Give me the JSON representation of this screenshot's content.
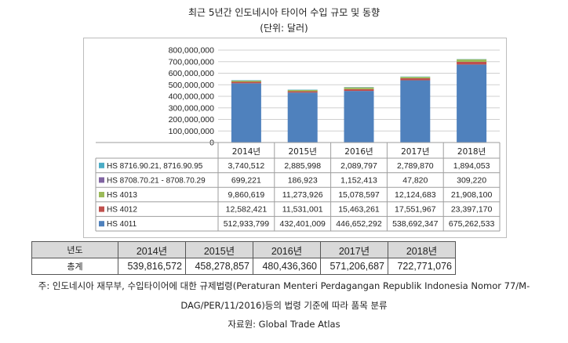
{
  "title": "최근 5년간 인도네시아 타이어 수입 규모 및 동향",
  "unit_label": "(단위: 달러)",
  "chart_data": {
    "type": "bar",
    "stacked": true,
    "categories": [
      "2014년",
      "2015년",
      "2016년",
      "2017년",
      "2018년"
    ],
    "ylim": [
      0,
      800000000
    ],
    "yticks": [
      "0",
      "100,000,000",
      "200,000,000",
      "300,000,000",
      "400,000,000",
      "500,000,000",
      "600,000,000",
      "700,000,000",
      "800,000,000"
    ],
    "grid": true,
    "series": [
      {
        "name": "HS 4011",
        "color": "#4f81bd",
        "values": [
          512933799,
          432401009,
          446652292,
          538692347,
          675262533
        ],
        "labels": [
          "512,933,799",
          "432,401,009",
          "446,652,292",
          "538,692,347",
          "675,262,533"
        ]
      },
      {
        "name": "HS 4012",
        "color": "#c0504d",
        "values": [
          12582421,
          11531001,
          15463261,
          17551967,
          23397170
        ],
        "labels": [
          "12,582,421",
          "11,531,001",
          "15,463,261",
          "17,551,967",
          "23,397,170"
        ]
      },
      {
        "name": "HS 4013",
        "color": "#9bbb59",
        "values": [
          9860619,
          11273926,
          15078597,
          12124683,
          21908100
        ],
        "labels": [
          "9,860,619",
          "11,273,926",
          "15,078,597",
          "12,124,683",
          "21,908,100"
        ]
      },
      {
        "name": "HS 8708.70.21 - 8708.70.29",
        "color": "#8064a2",
        "values": [
          699221,
          186923,
          1152413,
          47820,
          309220
        ],
        "labels": [
          "699,221",
          "186,923",
          "1,152,413",
          "47,820",
          "309,220"
        ]
      },
      {
        "name": "HS 8716.90.21, 8716.90.95",
        "color": "#4bacc6",
        "values": [
          3740512,
          2885998,
          2089797,
          2789870,
          1894053
        ],
        "labels": [
          "3,740,512",
          "2,885,998",
          "2,089,797",
          "2,789,870",
          "1,894,053"
        ]
      }
    ]
  },
  "summary_table": {
    "year_header": "년도",
    "years": [
      "2014년",
      "2015년",
      "2016년",
      "2017년",
      "2018년"
    ],
    "total_label": "총계",
    "totals": [
      "539,816,572",
      "458,278,857",
      "480,436,360",
      "571,206,687",
      "722,771,076"
    ]
  },
  "notes": {
    "line1": "주: 인도네시아 재무부, 수입타이어에 대한 규제법령(Peraturan Menteri Perdagangan Republik Indonesia Nomor 77/M-",
    "line2": "DAG/PER/11/2016)등의 법령 기준에 따라 품목 분류",
    "source": "자료원: Global Trade Atlas"
  }
}
